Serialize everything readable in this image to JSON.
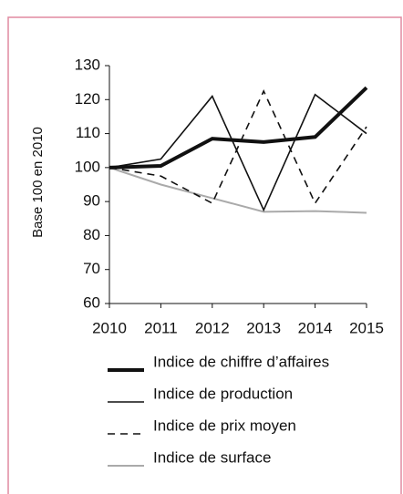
{
  "chart_data": {
    "type": "line",
    "y_label": "Base 100 en 2010",
    "categories": [
      "2010",
      "2011",
      "2012",
      "2013",
      "2014",
      "2015"
    ],
    "series": [
      {
        "name": "Indice de chiffre d’affaires",
        "color": "#111111",
        "line_width": 4,
        "dash": "none",
        "values": [
          100,
          100.5,
          108.5,
          107.5,
          109,
          123.5
        ]
      },
      {
        "name": "Indice de production",
        "color": "#111111",
        "line_width": 1.6,
        "dash": "none",
        "values": [
          100,
          102.5,
          121,
          87.5,
          121.5,
          110
        ]
      },
      {
        "name": "Indice de prix moyen",
        "color": "#111111",
        "line_width": 1.6,
        "dash": "8 6",
        "values": [
          100,
          97.5,
          89.5,
          122.5,
          89.5,
          112
        ]
      },
      {
        "name": "Indice de surface",
        "color": "#aaaaaa",
        "line_width": 2,
        "dash": "none",
        "values": [
          100,
          95,
          91,
          87,
          87.2,
          86.7
        ]
      }
    ],
    "ylim": [
      60,
      130
    ],
    "yticks": [
      60,
      70,
      80,
      90,
      100,
      110,
      120,
      130
    ]
  }
}
